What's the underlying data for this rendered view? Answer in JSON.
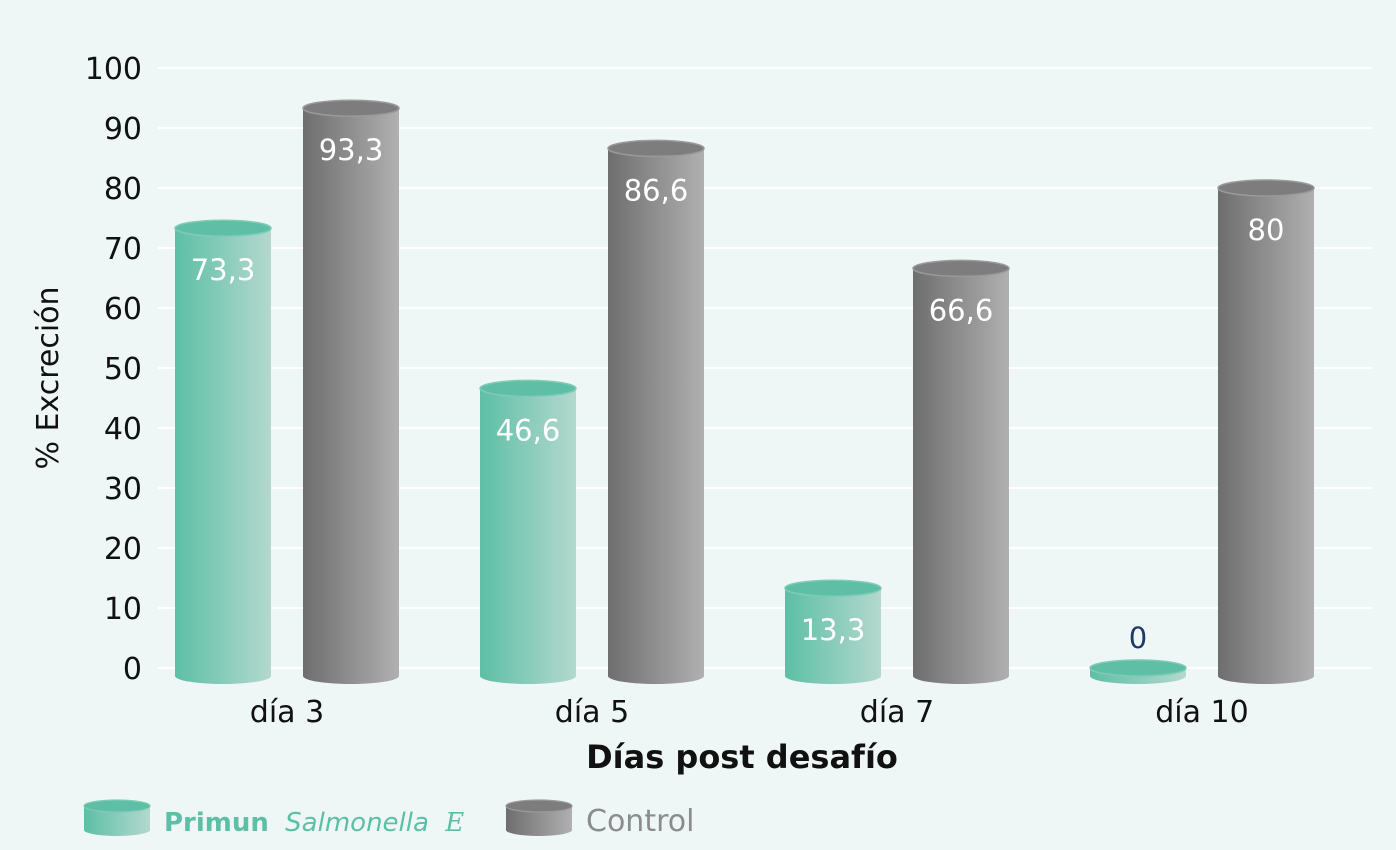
{
  "chart_data": {
    "type": "bar",
    "style": "3d-cylinder",
    "categories": [
      "día 3",
      "día 5",
      "día 7",
      "día 10"
    ],
    "series": [
      {
        "name": "Primun Salmonella E",
        "name_parts": {
          "brand": "Primun",
          "product": "Salmonella",
          "suffix": "E"
        },
        "values": [
          73.3,
          46.6,
          13.3,
          0
        ],
        "labels": [
          "73,3",
          "46,6",
          "13,3",
          "0"
        ],
        "color_from": "#5dbfa6",
        "color_to": "#b4d8ce"
      },
      {
        "name": "Control",
        "values": [
          93.3,
          86.6,
          66.6,
          80
        ],
        "labels": [
          "93,3",
          "86,6",
          "66,6",
          "80"
        ],
        "color_from": "#6e6e6e",
        "color_to": "#b0b0b0"
      }
    ],
    "ylim": [
      0,
      100
    ],
    "yticks": [
      0,
      10,
      20,
      30,
      40,
      50,
      60,
      70,
      80,
      90,
      100
    ],
    "ylabel": "% Excreción",
    "xlabel": "Días post desafío",
    "grid": true,
    "legend": "bottom-left",
    "zero_label_color": "#1b3a6b"
  }
}
